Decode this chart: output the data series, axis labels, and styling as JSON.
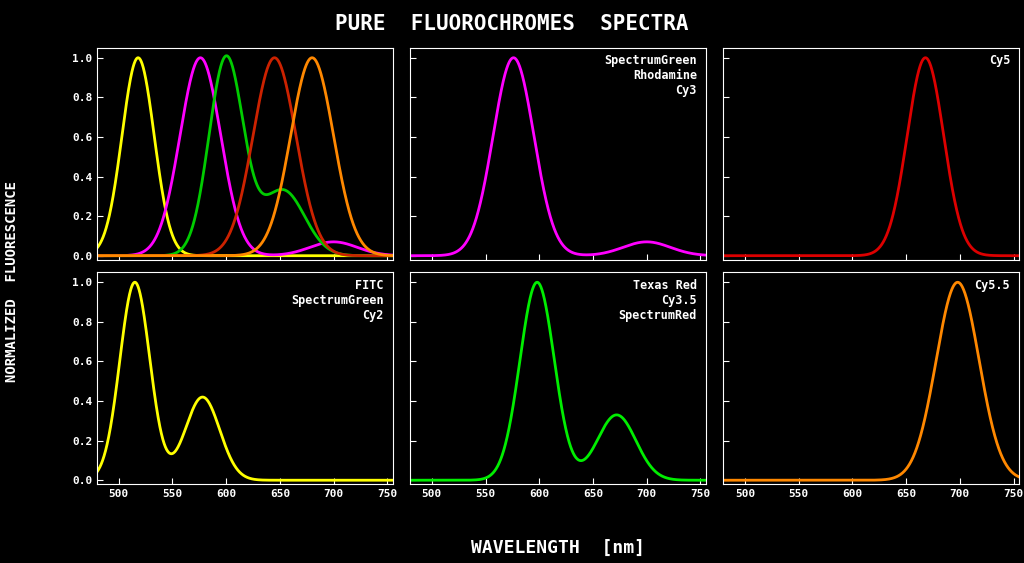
{
  "title": "PURE  FLUOROCHROMES  SPECTRA",
  "xlabel": "WAVELENGTH  [nm]",
  "ylabel": "NORMALIZED  FLUORESCENCE",
  "bg_color": "#000000",
  "text_color": "#ffffff",
  "axis_color": "#ffffff",
  "xlim": [
    480,
    755
  ],
  "ylim": [
    -0.02,
    1.05
  ],
  "yticks": [
    0.0,
    0.2,
    0.4,
    0.6,
    0.8,
    1.0
  ],
  "xticks": [
    500,
    550,
    600,
    650,
    700,
    750
  ],
  "subplots": [
    {
      "label": "",
      "label_color": "#ffffff",
      "curves": [
        {
          "color": "#ffff00",
          "segments": [
            {
              "peak": 518,
              "sigma": 15,
              "amp": 1.0
            }
          ]
        },
        {
          "color": "#ff00ff",
          "segments": [
            {
              "peak": 576,
              "sigma": 19,
              "amp": 1.0
            },
            {
              "peak": 700,
              "sigma": 22,
              "amp": 0.07
            }
          ]
        },
        {
          "color": "#00cc00",
          "segments": [
            {
              "peak": 600,
              "sigma": 16,
              "amp": 1.0
            },
            {
              "peak": 653,
              "sigma": 20,
              "amp": 0.33
            }
          ]
        },
        {
          "color": "#cc2200",
          "segments": [
            {
              "peak": 645,
              "sigma": 20,
              "amp": 1.0
            }
          ]
        },
        {
          "color": "#ff8800",
          "segments": [
            {
              "peak": 680,
              "sigma": 20,
              "amp": 1.0
            }
          ]
        }
      ]
    },
    {
      "label": "SpectrumGreen\nRhodamine\nCy3",
      "label_color": "#ffffff",
      "curves": [
        {
          "color": "#ff00ff",
          "segments": [
            {
              "peak": 576,
              "sigma": 19,
              "amp": 1.0
            },
            {
              "peak": 700,
              "sigma": 22,
              "amp": 0.07
            }
          ]
        }
      ]
    },
    {
      "label": "Cy5",
      "label_color": "#ffffff",
      "curves": [
        {
          "color": "#dd0000",
          "segments": [
            {
              "peak": 668,
              "sigma": 17,
              "amp": 1.0
            }
          ]
        }
      ]
    },
    {
      "label": "FITC\nSpectrumGreen\nCy2",
      "label_color": "#ffffff",
      "curves": [
        {
          "color": "#ffff00",
          "segments": [
            {
              "peak": 515,
              "sigma": 14,
              "amp": 1.0
            },
            {
              "peak": 578,
              "sigma": 16,
              "amp": 0.42
            }
          ]
        }
      ]
    },
    {
      "label": "Texas Red\nCy3.5\nSpectrumRed",
      "label_color": "#ffffff",
      "curves": [
        {
          "color": "#00ee00",
          "segments": [
            {
              "peak": 598,
              "sigma": 16,
              "amp": 1.0
            },
            {
              "peak": 672,
              "sigma": 18,
              "amp": 0.33
            }
          ]
        }
      ]
    },
    {
      "label": "Cy5.5",
      "label_color": "#ffffff",
      "curves": [
        {
          "color": "#ff8800",
          "segments": [
            {
              "peak": 698,
              "sigma": 20,
              "amp": 1.0
            }
          ]
        }
      ]
    }
  ]
}
